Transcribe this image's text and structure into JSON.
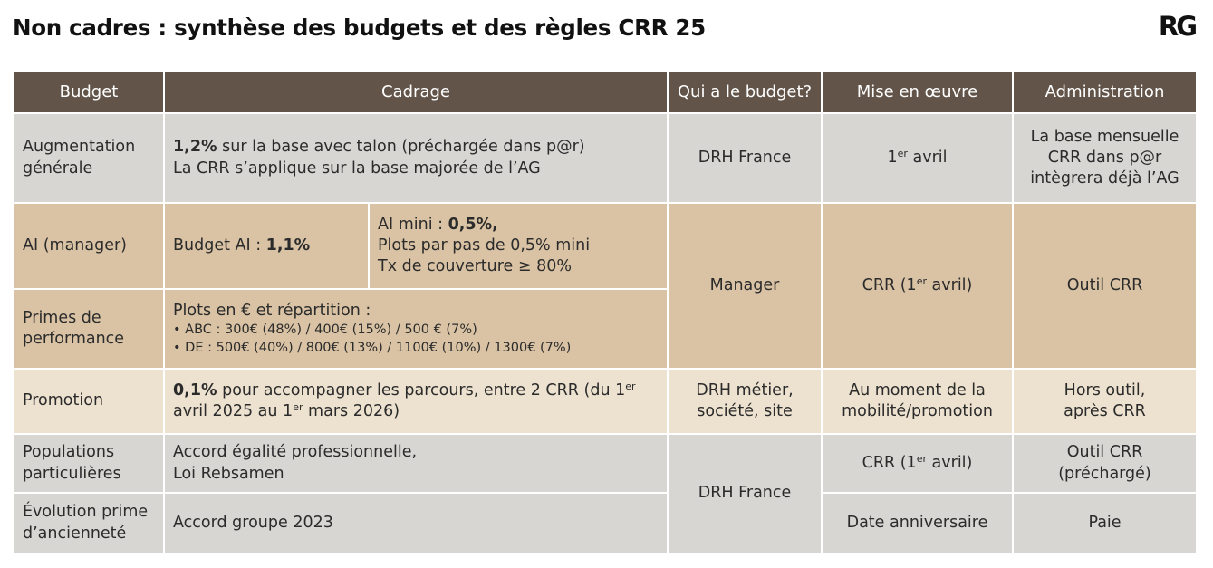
{
  "header": {
    "title": "Non cadres : synthèse des budgets et des règles CRR 25",
    "logo": "RG"
  },
  "columns": [
    "Budget",
    "Cadrage",
    "Qui a le budget?",
    "Mise en œuvre",
    "Administration"
  ],
  "rows": {
    "ag": {
      "budget": [
        "Augmentation",
        "générale"
      ],
      "cadrage_bold": "1,2%",
      "cadrage_1": " sur la base avec talon (préchargée dans p@r)",
      "cadrage_2": "La CRR s’applique sur la base majorée de l’AG",
      "qui": "DRH France",
      "mise_num": "1",
      "mise_sup": "er",
      "mise_rest": " avril",
      "admin": [
        "La base mensuelle",
        "CRR dans p@r",
        "intègrera déjà l’AG"
      ]
    },
    "ai": {
      "budget": "AI (manager)",
      "cadrage_a_label": "Budget AI : ",
      "cadrage_a_bold": "1,1%",
      "cadrage_b_label": "AI mini : ",
      "cadrage_b_bold": "0,5%,",
      "cadrage_b_2": "Plots par pas de 0,5% mini",
      "cadrage_b_3": "Tx de couverture ≥ 80%"
    },
    "manager_group": {
      "qui": "Manager",
      "mise_pre": "CRR (1",
      "mise_sup": "er",
      "mise_post": " avril)",
      "admin": "Outil CRR"
    },
    "primes": {
      "budget": [
        "Primes de",
        "performance"
      ],
      "cadrage_1": "Plots en € et répartition :",
      "cadrage_2": "• ABC : 300€ (48%) / 400€ (15%) / 500 € (7%)",
      "cadrage_3": "• DE : 500€ (40%) / 800€ (13%) / 1100€ (10%) / 1300€ (7%)"
    },
    "promotion": {
      "budget": "Promotion",
      "cadrage_bold": "0,1%",
      "cadrage_1": " pour accompagner les parcours, entre 2 CRR (du 1",
      "cadrage_sup1": "er",
      "cadrage_2a": "avril 2025 au 1",
      "cadrage_sup2": "er",
      "cadrage_2b": " mars 2026)",
      "qui": [
        "DRH métier,",
        "société, site"
      ],
      "mise": [
        "Au moment de la",
        "mobilité/promotion"
      ],
      "admin": [
        "Hors outil,",
        "après CRR"
      ]
    },
    "populations": {
      "budget": [
        "Populations",
        "particulières"
      ],
      "cadrage": [
        "Accord égalité professionnelle,",
        "Loi Rebsamen"
      ],
      "mise_pre": "CRR (1",
      "mise_sup": "er",
      "mise_post": " avril)",
      "admin": [
        "Outil CRR",
        "(préchargé)"
      ]
    },
    "drh_group": {
      "qui": "DRH France"
    },
    "evolution": {
      "budget": [
        "Évolution prime",
        "d’ancienneté"
      ],
      "cadrage": "Accord groupe 2023",
      "mise": "Date anniversaire",
      "admin": "Paie"
    }
  },
  "colors": {
    "header_bg": "#625449",
    "grey_row": "#d8d6d3",
    "tan_row": "#d9c3a4",
    "cream_row": "#ede2d0"
  }
}
